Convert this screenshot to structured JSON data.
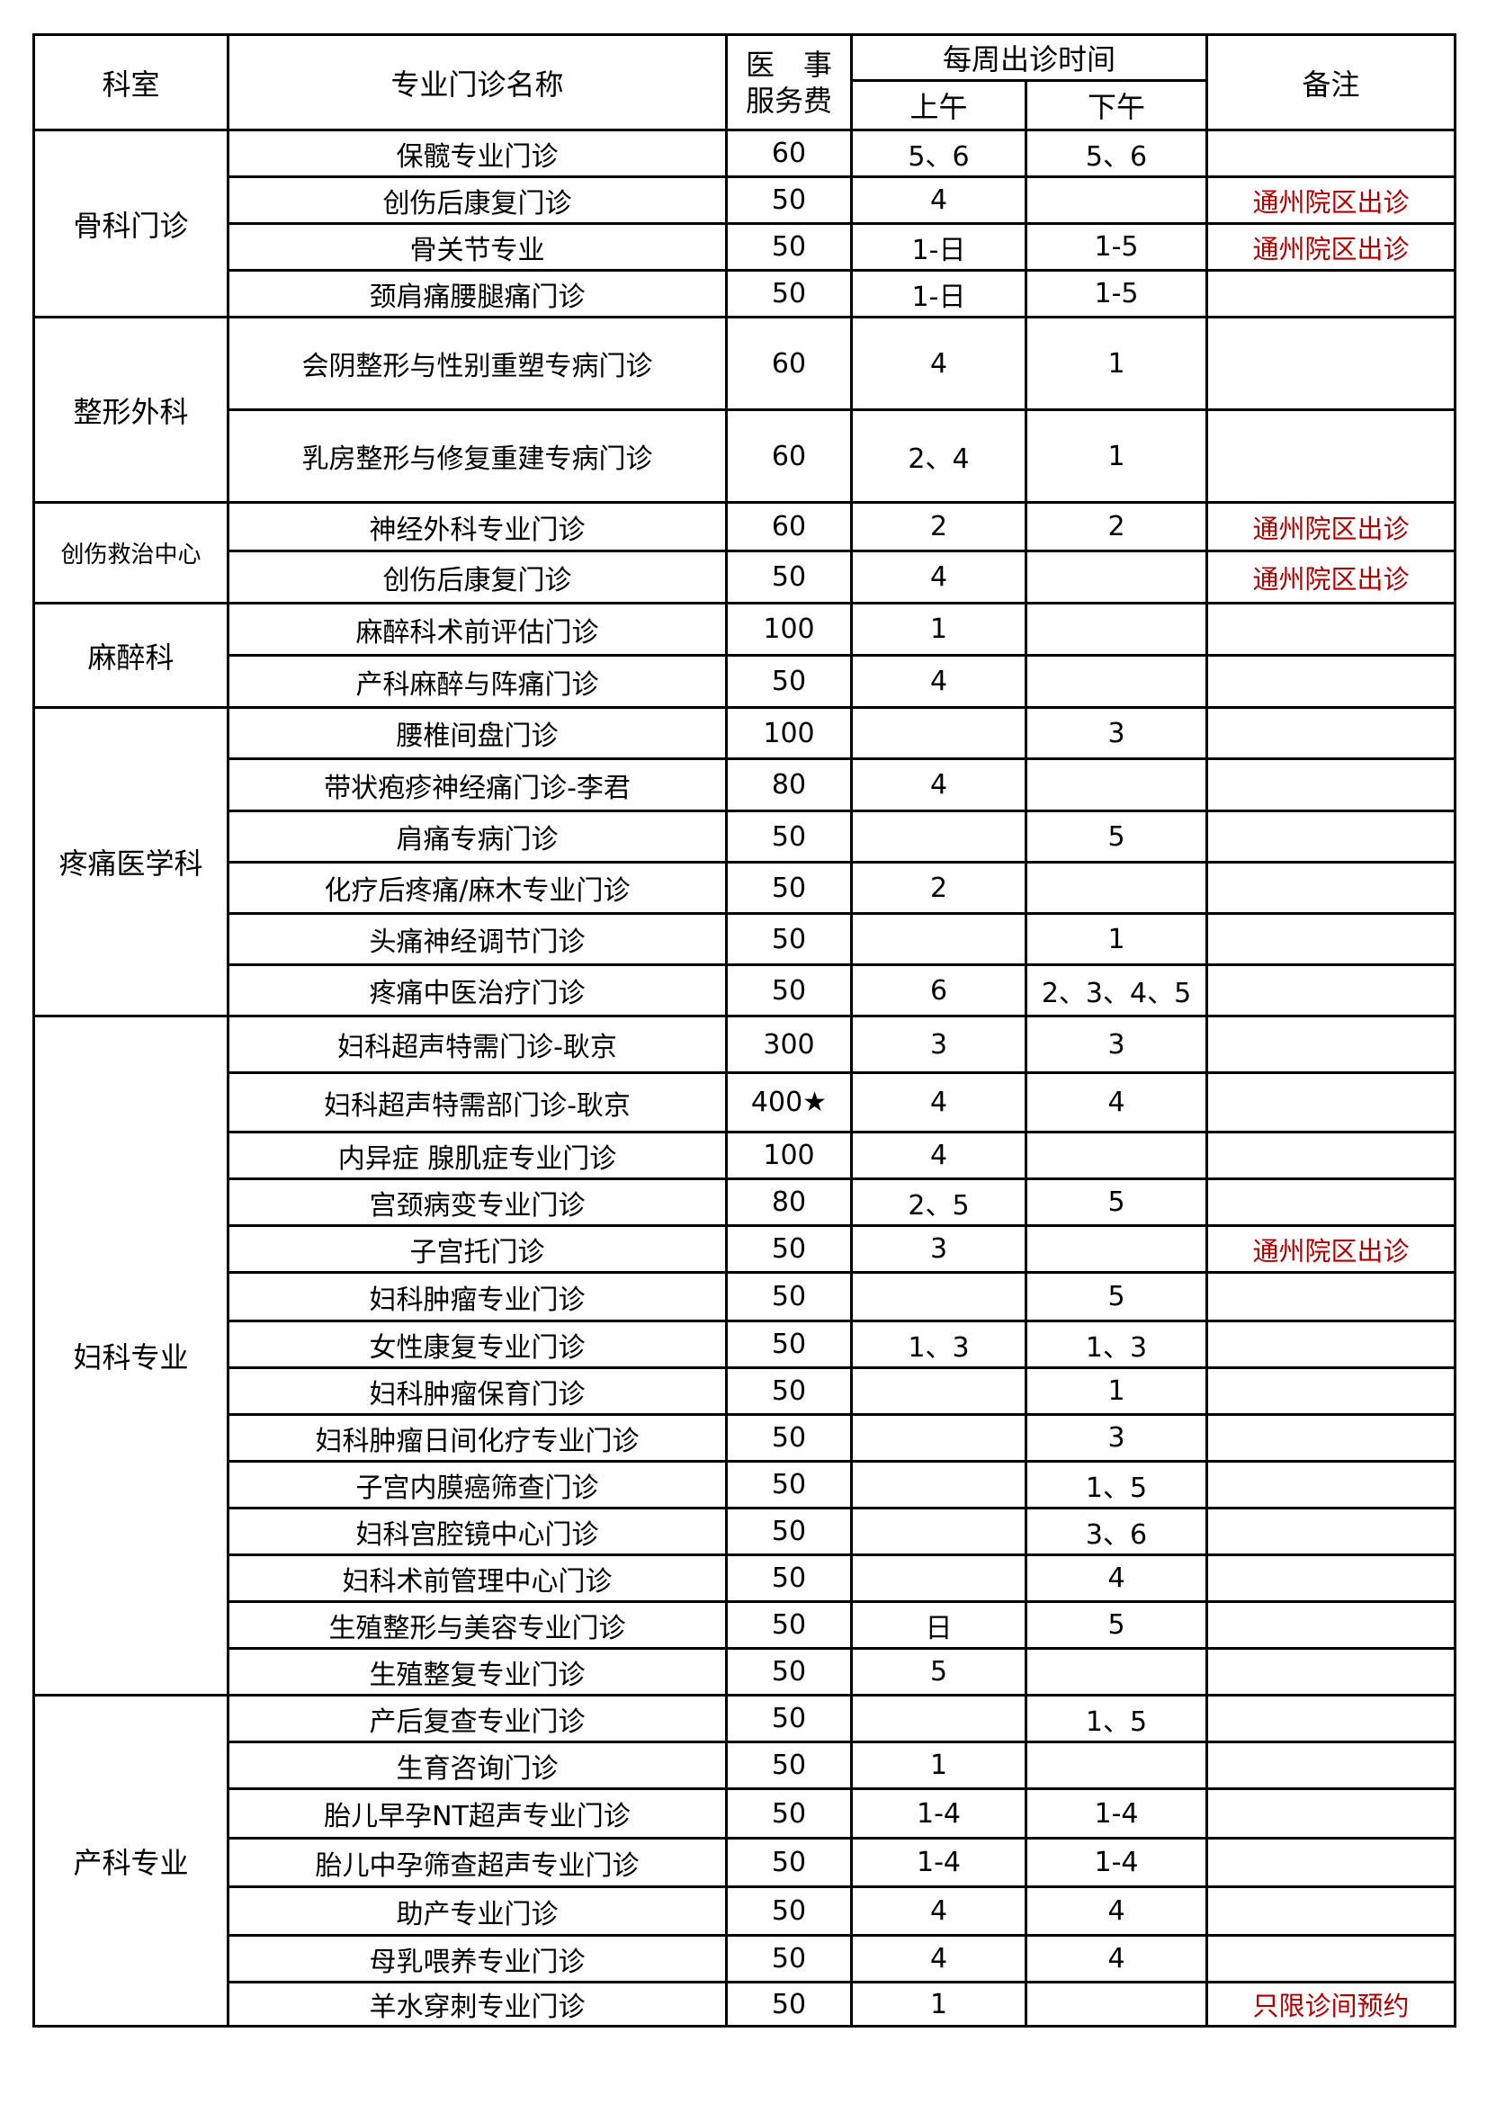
{
  "header": {
    "department": "科室",
    "clinic_name": "专业门诊名称",
    "fee_line1": "医　事",
    "fee_line2": "服务费",
    "weekly_schedule": "每周出诊时间",
    "morning": "上午",
    "afternoon": "下午",
    "remarks": "备注"
  },
  "colors": {
    "remark": "#b00000",
    "border": "#000000"
  },
  "departments": [
    {
      "name": "骨科门诊",
      "rows": [
        {
          "clinic": "保髋专业门诊",
          "fee": "60",
          "am": "5、6",
          "pm": "5、6",
          "remark": ""
        },
        {
          "clinic": "创伤后康复门诊",
          "fee": "50",
          "am": "4",
          "pm": "",
          "remark": "通州院区出诊"
        },
        {
          "clinic": "骨关节专业",
          "fee": "50",
          "am": "1-日",
          "pm": "1-5",
          "remark": "通州院区出诊"
        },
        {
          "clinic": "颈肩痛腰腿痛门诊",
          "fee": "50",
          "am": "1-日",
          "pm": "1-5",
          "remark": ""
        }
      ]
    },
    {
      "name": "整形外科",
      "rows": [
        {
          "clinic": "会阴整形与性别重塑专病门诊",
          "fee": "60",
          "am": "4",
          "pm": "1",
          "remark": ""
        },
        {
          "clinic": "乳房整形与修复重建专病门诊",
          "fee": "60",
          "am": "2、4",
          "pm": "1",
          "remark": ""
        }
      ]
    },
    {
      "name": "创伤救治中心",
      "rows": [
        {
          "clinic": "神经外科专业门诊",
          "fee": "60",
          "am": "2",
          "pm": "2",
          "remark": "通州院区出诊"
        },
        {
          "clinic": "创伤后康复门诊",
          "fee": "50",
          "am": "4",
          "pm": "",
          "remark": "通州院区出诊"
        }
      ]
    },
    {
      "name": "麻醉科",
      "rows": [
        {
          "clinic": "麻醉科术前评估门诊",
          "fee": "100",
          "am": "1",
          "pm": "",
          "remark": ""
        },
        {
          "clinic": "产科麻醉与阵痛门诊",
          "fee": "50",
          "am": "4",
          "pm": "",
          "remark": ""
        }
      ]
    },
    {
      "name": "疼痛医学科",
      "rows": [
        {
          "clinic": "腰椎间盘门诊",
          "fee": "100",
          "am": "",
          "pm": "3",
          "remark": ""
        },
        {
          "clinic": "带状疱疹神经痛门诊-李君",
          "fee": "80",
          "am": "4",
          "pm": "",
          "remark": ""
        },
        {
          "clinic": "肩痛专病门诊",
          "fee": "50",
          "am": "",
          "pm": "5",
          "remark": ""
        },
        {
          "clinic": "化疗后疼痛/麻木专业门诊",
          "fee": "50",
          "am": "2",
          "pm": "",
          "remark": ""
        },
        {
          "clinic": "头痛神经调节门诊",
          "fee": "50",
          "am": "",
          "pm": "1",
          "remark": ""
        },
        {
          "clinic": "疼痛中医治疗门诊",
          "fee": "50",
          "am": "6",
          "pm": "2、3、4、5",
          "remark": ""
        }
      ]
    },
    {
      "name": "妇科专业",
      "rows": [
        {
          "clinic": "妇科超声特需门诊-耿京",
          "fee": "300",
          "am": "3",
          "pm": "3",
          "remark": ""
        },
        {
          "clinic": "妇科超声特需部门诊-耿京",
          "fee": "400★",
          "am": "4",
          "pm": "4",
          "remark": ""
        },
        {
          "clinic": "内异症 腺肌症专业门诊",
          "fee": "100",
          "am": "4",
          "pm": "",
          "remark": ""
        },
        {
          "clinic": "宫颈病变专业门诊",
          "fee": "80",
          "am": "2、5",
          "pm": "5",
          "remark": ""
        },
        {
          "clinic": "子宫托门诊",
          "fee": "50",
          "am": "3",
          "pm": "",
          "remark": "通州院区出诊"
        },
        {
          "clinic": "妇科肿瘤专业门诊",
          "fee": "50",
          "am": "",
          "pm": "5",
          "remark": ""
        },
        {
          "clinic": "女性康复专业门诊",
          "fee": "50",
          "am": "1、3",
          "pm": "1、3",
          "remark": ""
        },
        {
          "clinic": "妇科肿瘤保育门诊",
          "fee": "50",
          "am": "",
          "pm": "1",
          "remark": ""
        },
        {
          "clinic": "妇科肿瘤日间化疗专业门诊",
          "fee": "50",
          "am": "",
          "pm": "3",
          "remark": ""
        },
        {
          "clinic": "子宫内膜癌筛查门诊",
          "fee": "50",
          "am": "",
          "pm": "1、5",
          "remark": ""
        },
        {
          "clinic": "妇科宫腔镜中心门诊",
          "fee": "50",
          "am": "",
          "pm": "3、6",
          "remark": ""
        },
        {
          "clinic": "妇科术前管理中心门诊",
          "fee": "50",
          "am": "",
          "pm": "4",
          "remark": ""
        },
        {
          "clinic": "生殖整形与美容专业门诊",
          "fee": "50",
          "am": "日",
          "pm": "5",
          "remark": ""
        },
        {
          "clinic": "生殖整复专业门诊",
          "fee": "50",
          "am": "5",
          "pm": "",
          "remark": ""
        }
      ]
    },
    {
      "name": "产科专业",
      "rows": [
        {
          "clinic": "产后复查专业门诊",
          "fee": "50",
          "am": "",
          "pm": "1、5",
          "remark": ""
        },
        {
          "clinic": "生育咨询门诊",
          "fee": "50",
          "am": "1",
          "pm": "",
          "remark": ""
        },
        {
          "clinic": "胎儿早孕NT超声专业门诊",
          "fee": "50",
          "am": "1-4",
          "pm": "1-4",
          "remark": ""
        },
        {
          "clinic": "胎儿中孕筛查超声专业门诊",
          "fee": "50",
          "am": "1-4",
          "pm": "1-4",
          "remark": ""
        },
        {
          "clinic": "助产专业门诊",
          "fee": "50",
          "am": "4",
          "pm": "4",
          "remark": ""
        },
        {
          "clinic": "母乳喂养专业门诊",
          "fee": "50",
          "am": "4",
          "pm": "4",
          "remark": ""
        },
        {
          "clinic": "羊水穿刺专业门诊",
          "fee": "50",
          "am": "1",
          "pm": "",
          "remark": "只限诊间预约"
        }
      ]
    }
  ]
}
